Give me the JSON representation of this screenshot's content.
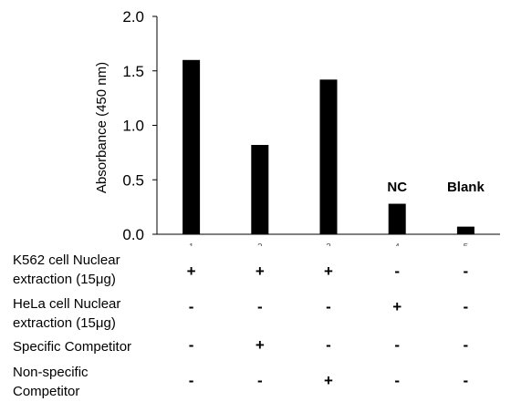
{
  "chart_data": {
    "type": "bar",
    "categories": [
      "1",
      "2",
      "3",
      "4",
      "5"
    ],
    "values": [
      1.6,
      0.82,
      1.42,
      0.28,
      0.07
    ],
    "ylabel": "Absorbance (450 nm)",
    "ylim": [
      0,
      2.0
    ],
    "yticks": [
      "0.0",
      "0.5",
      "1.0",
      "1.5",
      "2.0"
    ],
    "bar_color": "#000000",
    "annotations": [
      {
        "category": "4",
        "text": "NC"
      },
      {
        "category": "5",
        "text": "Blank"
      }
    ],
    "grid": false,
    "legend": "none"
  },
  "condition_table": {
    "rows": [
      {
        "label_lines": [
          "K562 cell Nuclear",
          "extraction (15μg)"
        ],
        "signs": [
          "+",
          "+",
          "+",
          "-",
          "-"
        ]
      },
      {
        "label_lines": [
          "HeLa cell Nuclear",
          "extraction (15μg)"
        ],
        "signs": [
          "-",
          "-",
          "-",
          "+",
          "-"
        ]
      },
      {
        "label_lines": [
          "Specific Competitor"
        ],
        "signs": [
          "-",
          "+",
          "-",
          "-",
          "-"
        ]
      },
      {
        "label_lines": [
          "Non-specific",
          "Competitor"
        ],
        "signs": [
          "-",
          "-",
          "+",
          "-",
          "-"
        ]
      }
    ]
  }
}
